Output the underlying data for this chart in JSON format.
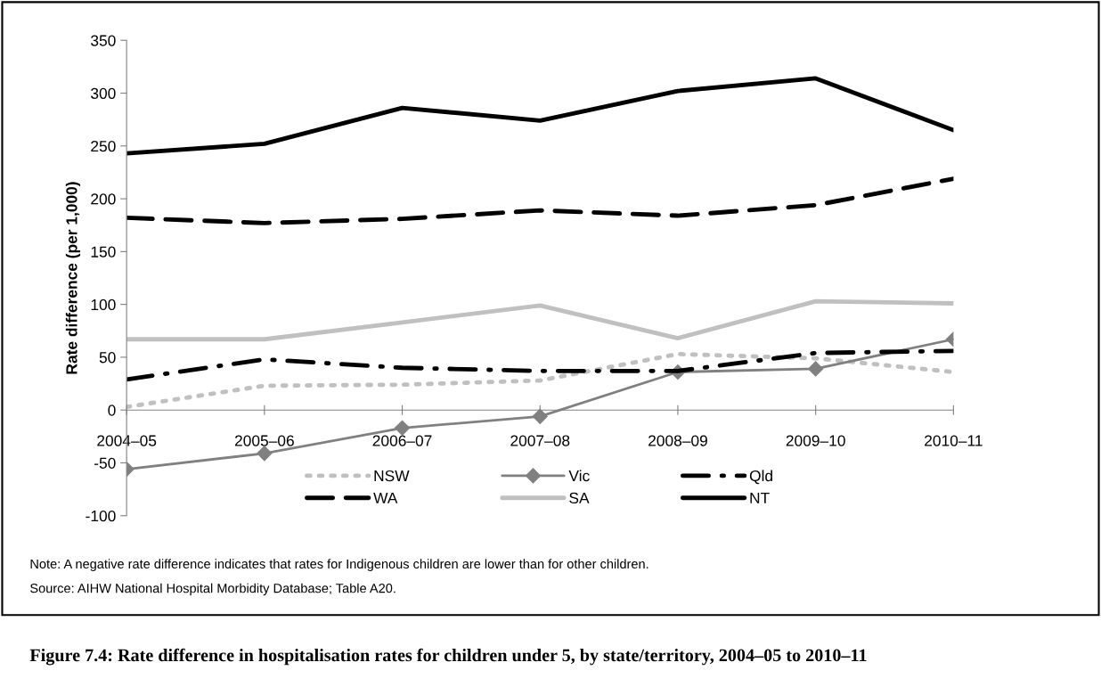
{
  "chart_data": {
    "type": "line",
    "title": "Figure 7.4: Rate difference in hospitalisation rates for children under 5, by state/territory, 2004–05 to 2010–11",
    "ylabel": "Rate difference (per 1,000)",
    "categories": [
      "2004–05",
      "2005–06",
      "2006–07",
      "2007–08",
      "2008–09",
      "2009–10",
      "2010–11"
    ],
    "series": [
      {
        "name": "NSW",
        "color": "#c0c0c0",
        "line_style": "dotted",
        "values": [
          3,
          23,
          24,
          28,
          53,
          49,
          36
        ]
      },
      {
        "name": "Vic",
        "color": "#808080",
        "line_style": "solid",
        "marker": "diamond",
        "values": [
          -56,
          -41,
          -17,
          -6,
          36,
          39,
          67
        ]
      },
      {
        "name": "Qld",
        "color": "#000000",
        "line_style": "dashdot",
        "values": [
          29,
          48,
          40,
          37,
          37,
          54,
          56
        ]
      },
      {
        "name": "WA",
        "color": "#000000",
        "line_style": "dashed",
        "values": [
          182,
          177,
          181,
          189,
          184,
          194,
          219
        ]
      },
      {
        "name": "SA",
        "color": "#c0c0c0",
        "line_style": "solid",
        "values": [
          67,
          67,
          83,
          99,
          68,
          103,
          101
        ]
      },
      {
        "name": "NT",
        "color": "#000000",
        "line_style": "solid",
        "values": [
          243,
          252,
          286,
          274,
          302,
          314,
          265
        ]
      }
    ],
    "ylim": [
      -100,
      350
    ],
    "yticks": [
      -100,
      -50,
      0,
      50,
      100,
      150,
      200,
      250,
      300,
      350
    ],
    "grid": false,
    "legend": "bottom",
    "annotations": [
      "Note: A negative rate difference indicates that rates for Indigenous children are lower than for other children.",
      "Source: AIHW National Hospital Morbidity Database; Table A20."
    ]
  }
}
